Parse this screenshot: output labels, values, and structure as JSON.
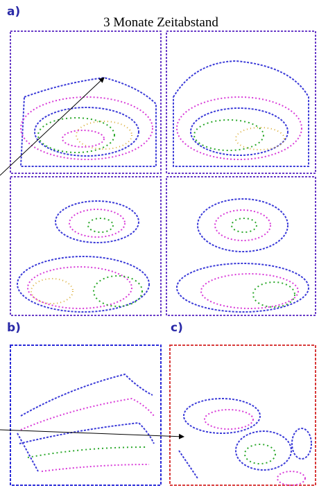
{
  "figure": {
    "title": "3 Monate Zeitabstand",
    "panels": {
      "a": "a)",
      "b": "b)",
      "c": "c)"
    }
  }
}
